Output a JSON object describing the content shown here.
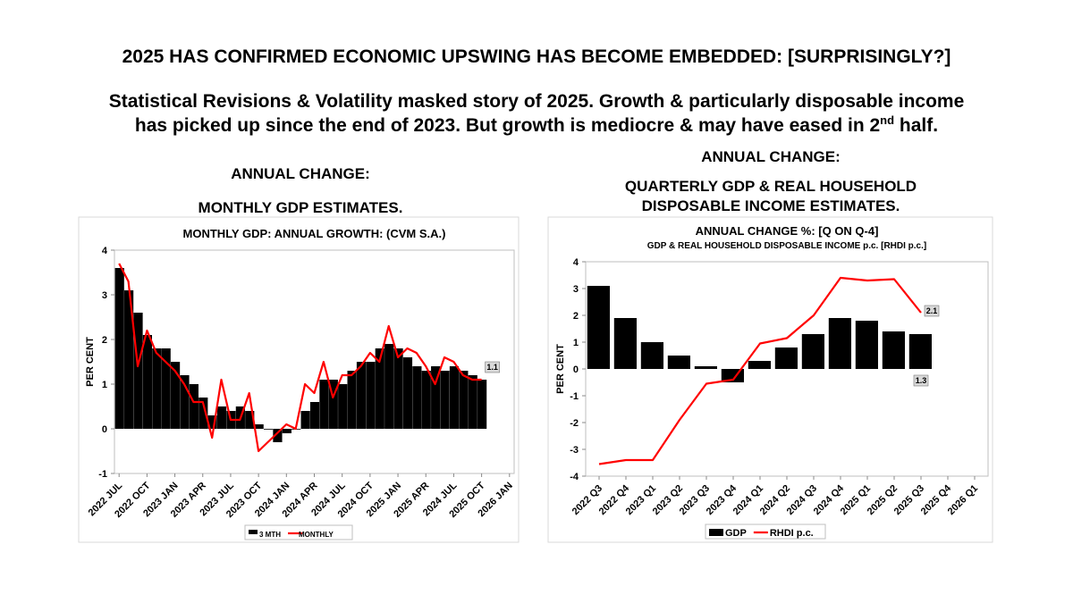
{
  "slide": {
    "title": "2025 HAS CONFIRMED ECONOMIC UPSWING HAS BECOME EMBEDDED: [SURPRISINGLY?]",
    "subtitle_line1": "Statistical Revisions & Volatility masked story of 2025. Growth & particularly disposable income",
    "subtitle_line2": "has picked up since the end of 2023. But growth is mediocre & may have eased in 2",
    "subtitle_sup": "nd",
    "subtitle_end": " half."
  },
  "chart_data": [
    {
      "type": "bar_line",
      "heading": [
        "ANNUAL CHANGE:",
        "MONTHLY GDP ESTIMATES."
      ],
      "title": "MONTHLY GDP: ANNUAL GROWTH: (CVM S.A.)",
      "y_label": "PER CENT",
      "categories": [
        "2022 JUL",
        null,
        null,
        "2022 OCT",
        null,
        null,
        "2023 JAN",
        null,
        null,
        "2023 APR",
        null,
        null,
        "2023 JUL",
        null,
        null,
        "2023 OCT",
        null,
        null,
        "2024 JAN",
        null,
        null,
        "2024 APR",
        null,
        null,
        "2024 JUL",
        null,
        null,
        "2024 OCT",
        null,
        null,
        "2025 JAN",
        null,
        null,
        "2025 APR",
        null,
        null,
        "2024 JUL",
        null,
        null,
        "2025 OCT",
        null,
        null,
        "2026 JAN"
      ],
      "series": [
        {
          "name": "3 MTH",
          "type": "bar",
          "color": "#000000",
          "label_last": true,
          "values": [
            3.6,
            3.1,
            2.6,
            2.1,
            1.8,
            1.8,
            1.5,
            1.2,
            1.0,
            0.7,
            0.3,
            0.5,
            0.4,
            0.5,
            0.4,
            0.1,
            0.0,
            -0.3,
            -0.1,
            0.0,
            0.4,
            0.6,
            1.1,
            1.1,
            1.0,
            1.3,
            1.5,
            1.5,
            1.8,
            1.9,
            1.8,
            1.6,
            1.4,
            1.3,
            1.4,
            1.3,
            1.4,
            1.3,
            1.2,
            1.1,
            null,
            null,
            null
          ]
        },
        {
          "name": "MONTHLY",
          "type": "line",
          "color": "#ff0000",
          "label_last": false,
          "values": [
            3.7,
            3.3,
            1.4,
            2.2,
            1.7,
            1.5,
            1.3,
            1.0,
            0.6,
            0.6,
            -0.2,
            1.1,
            0.2,
            0.2,
            0.8,
            -0.5,
            -0.3,
            -0.1,
            0.1,
            0.0,
            1.0,
            0.8,
            1.5,
            0.7,
            1.2,
            1.2,
            1.4,
            1.7,
            1.5,
            2.3,
            1.6,
            1.8,
            1.7,
            1.4,
            1.0,
            1.6,
            1.5,
            1.2,
            1.1,
            1.1,
            null,
            null,
            null
          ]
        }
      ],
      "ylim": [
        -1,
        4
      ],
      "yticks": [
        -1,
        0,
        1,
        2,
        3,
        4
      ],
      "legend": "bottom"
    },
    {
      "type": "bar_line",
      "heading": [
        "ANNUAL CHANGE:",
        "QUARTERLY GDP & REAL HOUSEHOLD",
        "DISPOSABLE INCOME ESTIMATES."
      ],
      "title": "ANNUAL CHANGE %: [Q ON Q-4]",
      "subtitle": "GDP & REAL HOUSEHOLD DISPOSABLE INCOME p.c. [RHDI p.c.]",
      "y_label": "PER CENT",
      "categories": [
        "2022 Q3",
        "2022 Q4",
        "2023 Q1",
        "2023 Q2",
        "2023 Q3",
        "2023 Q4",
        "2024 Q1",
        "2024 Q2",
        "2024 Q3",
        "2024 Q4",
        "2025 Q1",
        "2025 Q2",
        "2025 Q3",
        "2025 Q4",
        "2026 Q1"
      ],
      "series": [
        {
          "name": "GDP",
          "type": "bar",
          "color": "#000000",
          "label_last": true,
          "values": [
            3.1,
            1.9,
            1.0,
            0.5,
            0.1,
            -0.5,
            0.3,
            0.8,
            1.3,
            1.9,
            1.8,
            1.4,
            1.3,
            null,
            null
          ]
        },
        {
          "name": "RHDI p.c.",
          "type": "line",
          "color": "#ff0000",
          "label_last": true,
          "values": [
            -3.55,
            -3.4,
            -3.4,
            -1.9,
            -0.55,
            -0.4,
            0.95,
            1.15,
            2.0,
            3.4,
            3.3,
            3.35,
            2.1,
            null,
            null
          ]
        }
      ],
      "ylim": [
        -4,
        4
      ],
      "yticks": [
        -4,
        -3,
        -2,
        -1,
        0,
        1,
        2,
        3,
        4
      ],
      "legend": "bottom"
    }
  ]
}
